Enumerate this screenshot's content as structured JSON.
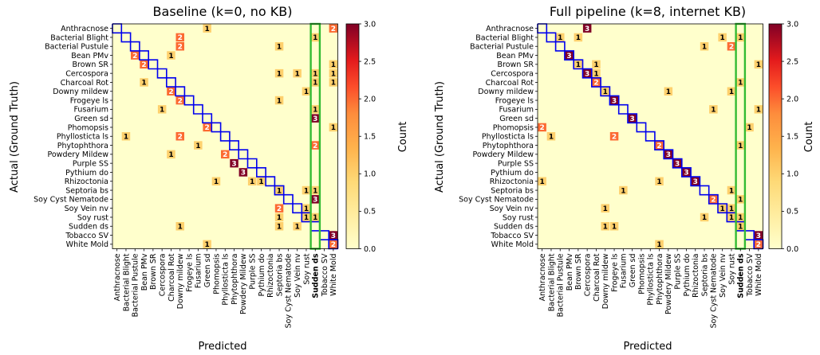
{
  "chart_data": [
    {
      "type": "heatmap",
      "title": "Baseline (k=0, no KB)",
      "xlabel": "Predicted",
      "ylabel": "Actual (Ground Truth)",
      "colorbar_label": "Count",
      "colorbar_ticks": [
        "0.0",
        "0.5",
        "1.0",
        "1.5",
        "2.0",
        "2.5",
        "3.0"
      ],
      "value_range": [
        0,
        3
      ],
      "categories": [
        "Anthracnose",
        "Bacterial Blight",
        "Bacterial Pustule",
        "Bean PMv",
        "Brown SR",
        "Cercospora",
        "Charcoal Rot",
        "Downy mildew",
        "Frogeye ls",
        "Fusarium",
        "Green sd",
        "Phomopsis",
        "Phyllosticta ls",
        "Phytophthora",
        "Powdery Mildew",
        "Purple SS",
        "Pythium do",
        "Rhizoctonia",
        "Septoria bs",
        "Soy Cyst Nematode",
        "Soy Vein nv",
        "Soy rust",
        "Sudden ds",
        "Tobacco SV",
        "White Mold"
      ],
      "highlight_column": 22,
      "highlight_color": "#33bb33",
      "diagonal_color": "#0000ee",
      "cells": [
        [
          0,
          10,
          1
        ],
        [
          0,
          24,
          2
        ],
        [
          1,
          7,
          2
        ],
        [
          1,
          22,
          1
        ],
        [
          2,
          7,
          2
        ],
        [
          2,
          18,
          1
        ],
        [
          3,
          2,
          2
        ],
        [
          3,
          6,
          1
        ],
        [
          4,
          3,
          2
        ],
        [
          4,
          24,
          1
        ],
        [
          5,
          18,
          1
        ],
        [
          5,
          20,
          1
        ],
        [
          5,
          22,
          1
        ],
        [
          5,
          24,
          1
        ],
        [
          6,
          3,
          1
        ],
        [
          6,
          22,
          1
        ],
        [
          6,
          24,
          1
        ],
        [
          7,
          6,
          2
        ],
        [
          7,
          21,
          1
        ],
        [
          8,
          7,
          2
        ],
        [
          8,
          18,
          1
        ],
        [
          9,
          5,
          1
        ],
        [
          9,
          22,
          1
        ],
        [
          10,
          22,
          3
        ],
        [
          11,
          10,
          2
        ],
        [
          11,
          24,
          1
        ],
        [
          12,
          1,
          1
        ],
        [
          12,
          7,
          2
        ],
        [
          13,
          9,
          1
        ],
        [
          13,
          22,
          2
        ],
        [
          14,
          6,
          1
        ],
        [
          14,
          12,
          2
        ],
        [
          15,
          13,
          3
        ],
        [
          16,
          14,
          3
        ],
        [
          17,
          11,
          1
        ],
        [
          17,
          15,
          1
        ],
        [
          17,
          16,
          1
        ],
        [
          18,
          18,
          1
        ],
        [
          18,
          21,
          1
        ],
        [
          18,
          22,
          1
        ],
        [
          19,
          22,
          3
        ],
        [
          20,
          18,
          2
        ],
        [
          20,
          21,
          1
        ],
        [
          21,
          18,
          1
        ],
        [
          21,
          21,
          1
        ],
        [
          21,
          22,
          1
        ],
        [
          22,
          7,
          1
        ],
        [
          22,
          18,
          1
        ],
        [
          22,
          20,
          1
        ],
        [
          23,
          24,
          3
        ],
        [
          24,
          10,
          1
        ],
        [
          24,
          24,
          2
        ]
      ]
    },
    {
      "type": "heatmap",
      "title": "Full pipeline (k=8, internet KB)",
      "xlabel": "Predicted",
      "ylabel": "Actual (Ground Truth)",
      "colorbar_label": "Count",
      "colorbar_ticks": [
        "0.0",
        "0.5",
        "1.0",
        "1.5",
        "2.0",
        "2.5",
        "3.0"
      ],
      "value_range": [
        0,
        3
      ],
      "categories": [
        "Anthracnose",
        "Bacterial Blight",
        "Bacterial Pustule",
        "Bean PMv",
        "Brown SR",
        "Cercospora",
        "Charcoal Rot",
        "Downy mildew",
        "Frogeye ls",
        "Fusarium",
        "Green sd",
        "Phomopsis",
        "Phyllosticta ls",
        "Phytophthora",
        "Powdery Mildew",
        "Purple SS",
        "Pythium do",
        "Rhizoctonia",
        "Septoria bs",
        "Soy Cyst Nematode",
        "Soy Vein nv",
        "Soy rust",
        "Sudden ds",
        "Tobacco SV",
        "White Mold"
      ],
      "highlight_column": 22,
      "highlight_color": "#33bb33",
      "diagonal_color": "#0000ee",
      "cells": [
        [
          0,
          5,
          3
        ],
        [
          1,
          2,
          1
        ],
        [
          1,
          4,
          1
        ],
        [
          1,
          20,
          1
        ],
        [
          1,
          22,
          1
        ],
        [
          2,
          18,
          1
        ],
        [
          2,
          21,
          2
        ],
        [
          3,
          3,
          3
        ],
        [
          4,
          4,
          1
        ],
        [
          4,
          6,
          1
        ],
        [
          4,
          24,
          1
        ],
        [
          5,
          5,
          3
        ],
        [
          5,
          6,
          1
        ],
        [
          6,
          6,
          2
        ],
        [
          6,
          22,
          1
        ],
        [
          7,
          7,
          1
        ],
        [
          7,
          14,
          1
        ],
        [
          7,
          21,
          1
        ],
        [
          8,
          8,
          3
        ],
        [
          9,
          19,
          1
        ],
        [
          9,
          24,
          1
        ],
        [
          10,
          10,
          3
        ],
        [
          11,
          0,
          2
        ],
        [
          11,
          23,
          1
        ],
        [
          12,
          1,
          1
        ],
        [
          12,
          8,
          2
        ],
        [
          13,
          13,
          2
        ],
        [
          13,
          22,
          1
        ],
        [
          14,
          14,
          3
        ],
        [
          15,
          15,
          3
        ],
        [
          16,
          16,
          3
        ],
        [
          17,
          0,
          1
        ],
        [
          17,
          13,
          1
        ],
        [
          17,
          17,
          3
        ],
        [
          18,
          9,
          1
        ],
        [
          18,
          21,
          1
        ],
        [
          19,
          19,
          2
        ],
        [
          19,
          22,
          1
        ],
        [
          20,
          7,
          1
        ],
        [
          20,
          20,
          1
        ],
        [
          20,
          21,
          1
        ],
        [
          21,
          18,
          1
        ],
        [
          21,
          21,
          1
        ],
        [
          21,
          22,
          1
        ],
        [
          22,
          7,
          1
        ],
        [
          22,
          8,
          1
        ],
        [
          22,
          22,
          1
        ],
        [
          23,
          24,
          3
        ],
        [
          24,
          13,
          1
        ],
        [
          24,
          24,
          2
        ]
      ]
    }
  ]
}
